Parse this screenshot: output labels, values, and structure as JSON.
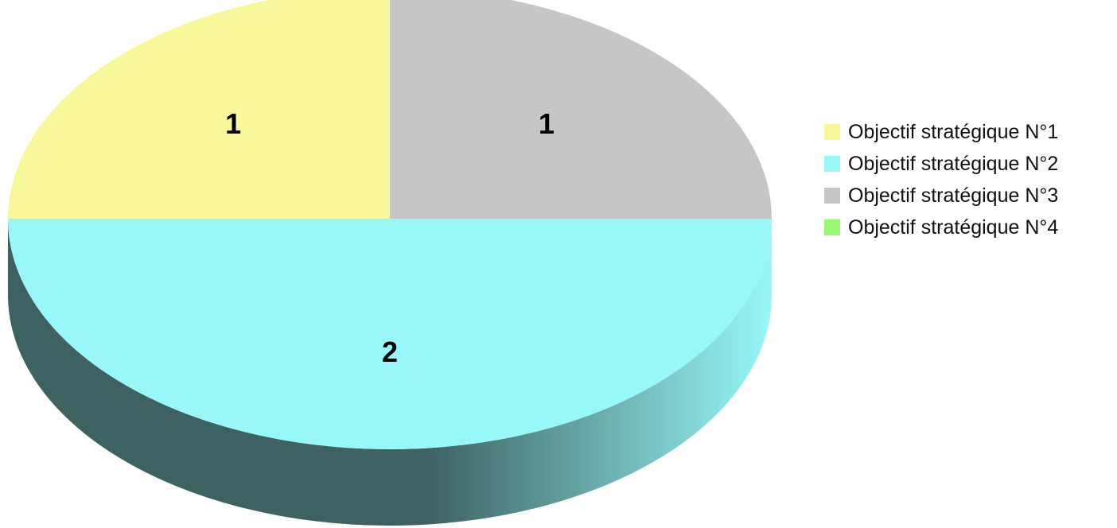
{
  "chart_data": {
    "type": "pie",
    "style": "3d",
    "title": "",
    "categories": [
      "Objectif stratégique N°1",
      "Objectif stratégique N°2",
      "Objectif stratégique N°3",
      "Objectif stratégique N°4"
    ],
    "values": [
      1,
      2,
      1,
      0
    ],
    "data_labels": [
      "1",
      "2",
      "1",
      ""
    ],
    "colors": [
      "#f8f89a",
      "#98f8f8",
      "#c6c6c6",
      "#98f870"
    ],
    "side_colors": [
      "#9c9c5c",
      "#3e6262",
      "#7c7c7c",
      "#5c9c44"
    ],
    "legend": {
      "position": "right"
    }
  }
}
